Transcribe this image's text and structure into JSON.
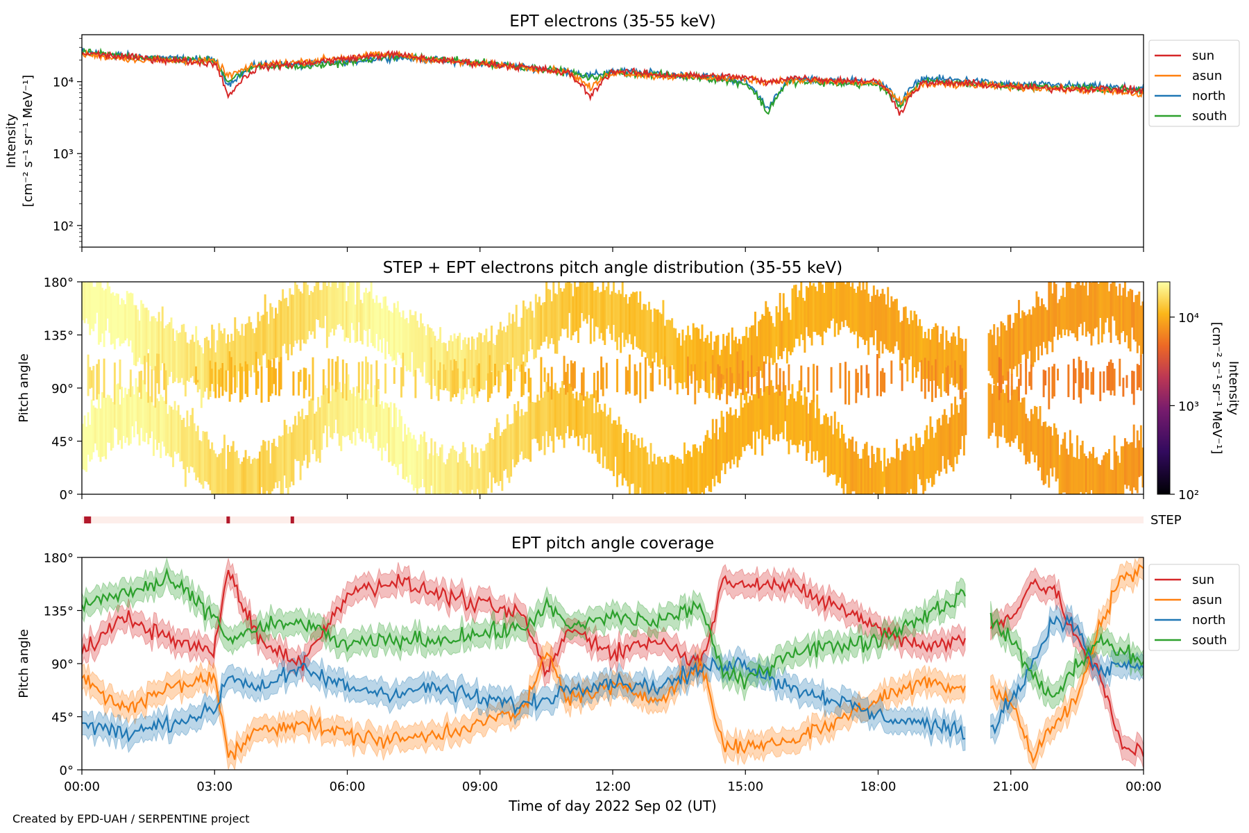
{
  "figure": {
    "credit": "Created by EPD-UAH / SERPENTINE project",
    "xlabel": "Time of day 2022 Sep 02 (UT)",
    "time_ticks": [
      "00:00",
      "03:00",
      "06:00",
      "09:00",
      "12:00",
      "15:00",
      "18:00",
      "21:00",
      "00:00"
    ]
  },
  "colors": {
    "sun": "#d62728",
    "asun": "#ff7f0e",
    "north": "#1f77b4",
    "south": "#2ca02c"
  },
  "chart_data": [
    {
      "type": "line",
      "title": "EPT electrons (35-55 keV)",
      "ylabel": [
        "Intensity",
        "[cm⁻² s⁻¹ sr⁻¹ MeV⁻¹]"
      ],
      "yscale": "log",
      "ylim": [
        50,
        45000
      ],
      "ytick_labels": [
        "10²",
        "10³",
        "10⁴"
      ],
      "ytick_values": [
        100,
        1000,
        10000
      ],
      "x_unit": "hours UT",
      "xlim": [
        0,
        24
      ],
      "legend": "outside-right",
      "x": [
        0,
        1,
        2,
        3,
        3.3,
        4,
        5,
        6,
        7,
        8,
        9,
        10,
        11,
        11.5,
        12,
        13,
        14,
        15,
        15.5,
        16,
        17,
        18,
        18.5,
        19,
        20,
        21,
        22,
        23,
        24
      ],
      "series": [
        {
          "name": "sun",
          "values": [
            25000,
            22000,
            20000,
            18000,
            6000,
            16000,
            18000,
            21000,
            24000,
            20000,
            18000,
            16000,
            13000,
            6000,
            14000,
            12500,
            12000,
            11500,
            9500,
            11500,
            10500,
            10000,
            3500,
            9500,
            9500,
            8500,
            8000,
            8000,
            7500
          ]
        },
        {
          "name": "asun",
          "values": [
            24000,
            21000,
            19500,
            19000,
            12000,
            17000,
            19000,
            22000,
            24000,
            20000,
            17500,
            16000,
            13500,
            8000,
            13500,
            12000,
            11500,
            11000,
            10000,
            10500,
            10000,
            9500,
            5000,
            9000,
            9000,
            8500,
            8000,
            7500,
            6500
          ]
        },
        {
          "name": "north",
          "values": [
            26000,
            23000,
            21000,
            20000,
            9000,
            17500,
            17000,
            19000,
            22000,
            20000,
            18000,
            16000,
            14000,
            12000,
            14000,
            13000,
            12000,
            10000,
            4000,
            10500,
            10500,
            10000,
            5000,
            11000,
            10500,
            9000,
            9000,
            8500,
            8000
          ]
        },
        {
          "name": "south",
          "values": [
            25500,
            22500,
            20500,
            19500,
            10000,
            17000,
            16000,
            18500,
            23000,
            20500,
            18500,
            16000,
            13500,
            11000,
            13500,
            12500,
            11500,
            9500,
            3500,
            10000,
            9500,
            9000,
            4500,
            10000,
            9500,
            8500,
            8500,
            8000,
            7500
          ]
        }
      ]
    },
    {
      "type": "heatmap",
      "title": "STEP + EPT electrons pitch angle distribution (35-55 keV)",
      "ylabel": "Pitch angle",
      "ylim": [
        0,
        180
      ],
      "ytick_labels": [
        "0°",
        "45°",
        "90°",
        "135°",
        "180°"
      ],
      "xlim": [
        0,
        24
      ],
      "colorbar": {
        "label": [
          "Intensity",
          "[cm⁻² s⁻¹ sr⁻¹ MeV⁻¹]"
        ],
        "scale": "log",
        "range": [
          100,
          25000
        ],
        "tick_labels": [
          "10²",
          "10³",
          "10⁴"
        ],
        "tick_values": [
          100,
          1000,
          10000
        ],
        "colormap": "inferno"
      },
      "data_gap_hours": [
        [
          20.0,
          20.5
        ]
      ],
      "mean_intensity": {
        "x": [
          0,
          1,
          2,
          3,
          4,
          5,
          6,
          7,
          8,
          9,
          10,
          11,
          12,
          13,
          14,
          15,
          16,
          17,
          18,
          19,
          20,
          21,
          22,
          23,
          24
        ],
        "values": [
          26000,
          24000,
          21000,
          17000,
          15000,
          17000,
          22000,
          24000,
          22000,
          18000,
          16000,
          13000,
          13000,
          12000,
          11000,
          10000,
          10500,
          10000,
          9000,
          9500,
          9000,
          8500,
          8500,
          8500,
          8000
        ]
      },
      "step_indicator": {
        "label": "STEP",
        "marks_hours": [
          0.05,
          3.3,
          4.75
        ]
      }
    },
    {
      "type": "line",
      "title": "EPT pitch angle coverage",
      "ylabel": "Pitch angle",
      "ylim": [
        0,
        180
      ],
      "ytick_labels": [
        "0°",
        "45°",
        "90°",
        "135°",
        "180°"
      ],
      "xlim": [
        0,
        24
      ],
      "xlabel": "Time of day 2022 Sep 02 (UT)",
      "legend": "outside-right",
      "shaded_band": "±10°",
      "data_gap_hours": [
        [
          20.0,
          20.5
        ]
      ],
      "x": [
        0,
        1,
        2,
        3,
        3.3,
        4,
        5,
        6,
        7,
        8,
        9,
        10,
        10.5,
        11,
        12,
        13,
        14,
        14.5,
        15,
        16,
        17,
        18,
        19,
        20,
        20.5,
        21,
        21.5,
        22,
        22.5,
        23,
        23.5,
        24
      ],
      "series": [
        {
          "name": "sun",
          "values": [
            100,
            130,
            110,
            100,
            170,
            110,
            90,
            150,
            160,
            150,
            140,
            130,
            80,
            120,
            100,
            110,
            90,
            160,
            160,
            155,
            140,
            120,
            105,
            110,
            120,
            130,
            160,
            150,
            110,
            80,
            20,
            15
          ]
        },
        {
          "name": "asun",
          "values": [
            80,
            50,
            70,
            80,
            10,
            35,
            40,
            30,
            25,
            30,
            40,
            50,
            100,
            60,
            70,
            60,
            90,
            20,
            20,
            25,
            40,
            60,
            75,
            70,
            70,
            60,
            10,
            40,
            60,
            120,
            165,
            170
          ]
        },
        {
          "name": "north",
          "values": [
            40,
            30,
            40,
            50,
            80,
            70,
            85,
            70,
            65,
            70,
            60,
            55,
            60,
            70,
            75,
            70,
            85,
            90,
            90,
            70,
            60,
            45,
            40,
            30,
            30,
            60,
            90,
            130,
            120,
            80,
            90,
            85
          ]
        },
        {
          "name": "south",
          "values": [
            140,
            150,
            160,
            130,
            110,
            120,
            125,
            105,
            110,
            110,
            115,
            120,
            140,
            120,
            130,
            125,
            140,
            80,
            75,
            100,
            105,
            110,
            130,
            150,
            130,
            110,
            80,
            60,
            90,
            110,
            100,
            90
          ]
        }
      ]
    }
  ]
}
